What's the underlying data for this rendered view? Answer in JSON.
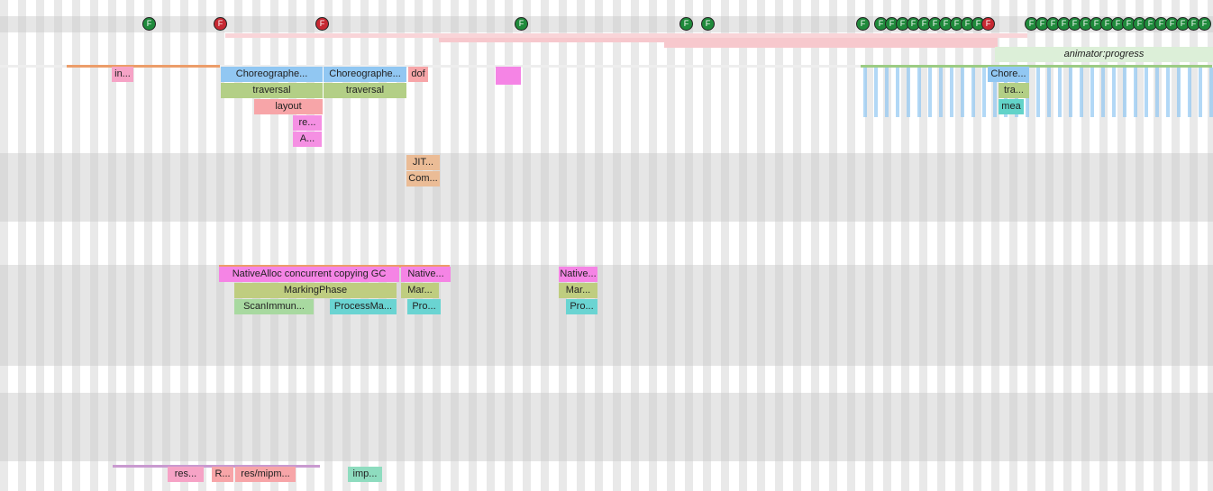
{
  "frames": [
    {
      "label": "F",
      "color": "#1f8a3b"
    },
    {
      "label": "F",
      "color": "#c62832"
    },
    {
      "label": "F",
      "color": "#c62832"
    },
    {
      "label": "F",
      "color": "#1f8a3b"
    },
    {
      "label": "F",
      "color": "#1f8a3b"
    },
    {
      "label": "F",
      "color": "#1f8a3b"
    },
    {
      "label": "F",
      "color": "#1f8a3b"
    },
    {
      "label": "F",
      "color": "#1f8a3b"
    },
    {
      "label": "F",
      "color": "#1f8a3b"
    },
    {
      "label": "F",
      "color": "#1f8a3b"
    },
    {
      "label": "F",
      "color": "#1f8a3b"
    },
    {
      "label": "F",
      "color": "#1f8a3b"
    },
    {
      "label": "F",
      "color": "#1f8a3b"
    },
    {
      "label": "F",
      "color": "#1f8a3b"
    },
    {
      "label": "F",
      "color": "#1f8a3b"
    },
    {
      "label": "F",
      "color": "#1f8a3b"
    },
    {
      "label": "F",
      "color": "#1f8a3b"
    },
    {
      "label": "F",
      "color": "#c62832"
    },
    {
      "label": "F",
      "color": "#1f8a3b"
    },
    {
      "label": "F",
      "color": "#1f8a3b"
    },
    {
      "label": "F",
      "color": "#1f8a3b"
    },
    {
      "label": "F",
      "color": "#1f8a3b"
    },
    {
      "label": "F",
      "color": "#1f8a3b"
    },
    {
      "label": "F",
      "color": "#1f8a3b"
    },
    {
      "label": "F",
      "color": "#1f8a3b"
    },
    {
      "label": "F",
      "color": "#1f8a3b"
    },
    {
      "label": "F",
      "color": "#1f8a3b"
    },
    {
      "label": "F",
      "color": "#1f8a3b"
    },
    {
      "label": "F",
      "color": "#1f8a3b"
    },
    {
      "label": "F",
      "color": "#1f8a3b"
    },
    {
      "label": "F",
      "color": "#1f8a3b"
    },
    {
      "label": "F",
      "color": "#1f8a3b"
    },
    {
      "label": "F",
      "color": "#1f8a3b"
    },
    {
      "label": "F",
      "color": "#1f8a3b"
    },
    {
      "label": "F",
      "color": "#1f8a3b"
    }
  ],
  "slices": [
    {
      "label": "in...",
      "color": "#f6a3c6"
    },
    {
      "label": "Choreographe...",
      "color": "#91c7f2"
    },
    {
      "label": "Choreographe...",
      "color": "#91c7f2"
    },
    {
      "label": "dof",
      "color": "#f7a5a8"
    },
    {
      "label": "traversal",
      "color": "#b3cf86"
    },
    {
      "label": "traversal",
      "color": "#b3cf86"
    },
    {
      "label": "layout",
      "color": "#f7a5a8"
    },
    {
      "label": "re...",
      "color": "#f590e3"
    },
    {
      "label": "A...",
      "color": "#f590e3"
    },
    {
      "label": "Chore...",
      "color": "#91c7f2"
    },
    {
      "label": "tra...",
      "color": "#b3cf86"
    },
    {
      "label": "mea",
      "color": "#62d3c9"
    },
    {
      "label": "animator:progress",
      "color": "#dcefd8"
    },
    {
      "label": "JIT...",
      "color": "#ebbc96"
    },
    {
      "label": "Com...",
      "color": "#ebbc96"
    },
    {
      "label": "NativeAlloc concurrent copying GC",
      "color": "#f584e5"
    },
    {
      "label": "Native...",
      "color": "#f584e5"
    },
    {
      "label": "Native...",
      "color": "#f584e5"
    },
    {
      "label": "MarkingPhase",
      "color": "#bfcd80"
    },
    {
      "label": "Mar...",
      "color": "#bfcd80"
    },
    {
      "label": "Mar...",
      "color": "#bfcd80"
    },
    {
      "label": "ScanImmun...",
      "color": "#a8d9a0"
    },
    {
      "label": "ProcessMa...",
      "color": "#6ad4d2"
    },
    {
      "label": "Pro...",
      "color": "#6ad4d2"
    },
    {
      "label": "Pro...",
      "color": "#6ad4d2"
    },
    {
      "label": "res...",
      "color": "#f6a3c6"
    },
    {
      "label": "R...",
      "color": "#f7a5a8"
    },
    {
      "label": "res/mipm...",
      "color": "#f7a5a8"
    },
    {
      "label": "imp...",
      "color": "#8edcbf"
    }
  ]
}
